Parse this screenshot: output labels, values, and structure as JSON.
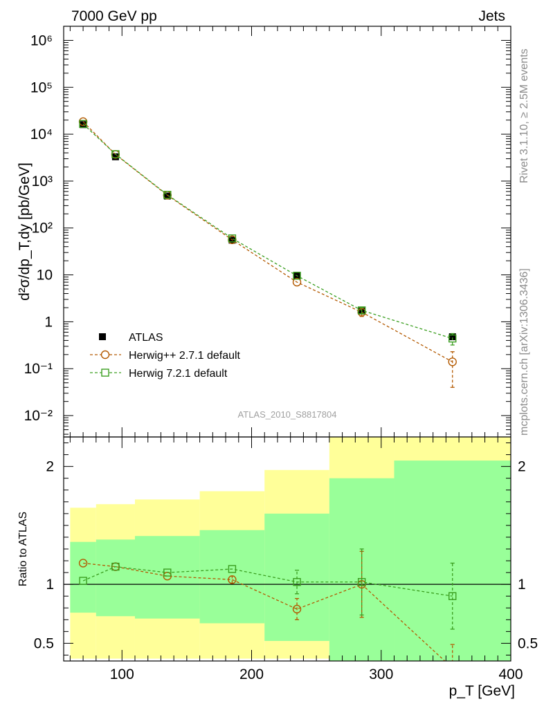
{
  "header": {
    "left": "7000 GeV pp",
    "right": "Jets",
    "side_rivet": "Rivet 3.1.10, ≥ 2.5M events",
    "side_mcplots": "mcplots.cern.ch [arXiv:1306.3436]",
    "watermark": "ATLAS_2010_S8817804"
  },
  "chart_data": [
    {
      "type": "scatter",
      "panel": "main",
      "ylabel": "d²σ/dp_T,dy [pb/GeV]",
      "yscale": "log",
      "xlim": [
        55,
        400
      ],
      "ylim": [
        0.0035,
        2000000
      ],
      "y_tick_labels": [
        "10⁻²",
        "10⁻¹",
        "1",
        "10",
        "10²",
        "10³",
        "10⁴",
        "10⁵",
        "10⁶"
      ],
      "legend_position": "bottom-left",
      "series": [
        {
          "name": "ATLAS",
          "marker": "filled-square",
          "color": "#000000",
          "x": [
            70,
            95,
            135,
            185,
            235,
            285,
            355
          ],
          "y": [
            16000,
            3300,
            480,
            55,
            9.5,
            1.7,
            0.48
          ]
        },
        {
          "name": "Herwig++ 2.7.1 default",
          "marker": "open-circle",
          "color": "#b35900",
          "x": [
            70,
            95,
            135,
            185,
            235,
            285,
            355
          ],
          "y": [
            18500,
            3700,
            500,
            56,
            7.0,
            1.6,
            0.14
          ],
          "yerr_low": [
            0,
            0,
            0,
            0,
            0,
            0.3,
            0.1
          ],
          "yerr_high": [
            0,
            0,
            0,
            0,
            0,
            0.3,
            0.09
          ]
        },
        {
          "name": "Herwig 7.2.1 default",
          "marker": "open-square",
          "color": "#3a9e1f",
          "x": [
            70,
            95,
            135,
            185,
            235,
            285,
            355
          ],
          "y": [
            16500,
            3750,
            510,
            60,
            9.6,
            1.75,
            0.44
          ],
          "yerr_low": [
            0,
            0,
            0,
            0,
            0,
            0.25,
            0.12
          ],
          "yerr_high": [
            0,
            0,
            0,
            0,
            0,
            0.25,
            0.12
          ]
        }
      ]
    },
    {
      "type": "scatter",
      "panel": "ratio",
      "ylabel": "Ratio to ATLAS",
      "xlabel": "p_T [GeV]",
      "xlim": [
        55,
        400
      ],
      "ylim": [
        0.35,
        2.25
      ],
      "x_ticks": [
        100,
        200,
        300,
        400
      ],
      "y_ticks": [
        0.5,
        1,
        2
      ],
      "reference_line": 1,
      "bands": {
        "x_edges": [
          60,
          80,
          110,
          160,
          210,
          260,
          310,
          400
        ],
        "outer": {
          "color": "#ffff99",
          "low": [
            0.37,
            0.37,
            0.37,
            0.37,
            0.37,
            0.35,
            0.35
          ],
          "high": [
            1.65,
            1.68,
            1.72,
            1.79,
            1.97,
            2.25,
            2.25
          ]
        },
        "inner": {
          "color": "#99ff99",
          "low": [
            0.76,
            0.73,
            0.71,
            0.67,
            0.52,
            0.35,
            0.35
          ],
          "high": [
            1.36,
            1.38,
            1.41,
            1.46,
            1.6,
            1.9,
            2.05
          ]
        }
      },
      "series": [
        {
          "name": "Herwig++ 2.7.1 default",
          "color": "#b35900",
          "marker": "open-circle",
          "x": [
            70,
            95,
            135,
            185,
            235,
            285,
            355
          ],
          "y": [
            1.18,
            1.15,
            1.07,
            1.04,
            0.79,
            1.0,
            0.29
          ],
          "yerr": [
            0,
            0,
            0,
            0.03,
            0.09,
            0.28,
            0.2
          ]
        },
        {
          "name": "Herwig 7.2.1 default",
          "color": "#3a9e1f",
          "marker": "open-square",
          "x": [
            70,
            95,
            135,
            185,
            235,
            285,
            355
          ],
          "y": [
            1.03,
            1.15,
            1.1,
            1.13,
            1.02,
            1.02,
            0.9
          ],
          "yerr": [
            0,
            0,
            0,
            0,
            0.1,
            0.28,
            0.28
          ]
        }
      ]
    }
  ]
}
